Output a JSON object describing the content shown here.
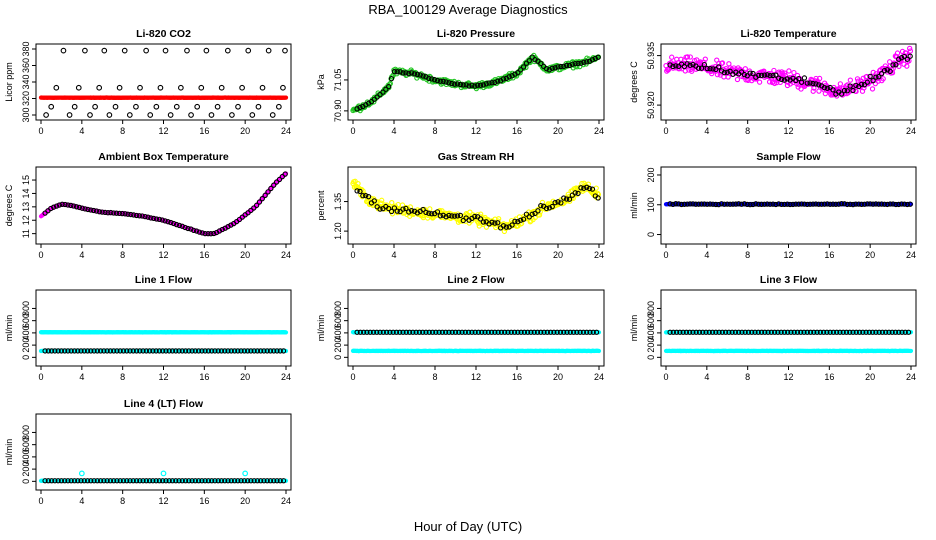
{
  "figure": {
    "title": "RBA_100129  Average Diagnostics",
    "xlabel": "Hour of Day (UTC)"
  },
  "chart_data": [
    {
      "type": "scatter",
      "title": "Li-820 CO2",
      "ylabel": "Licor ppm",
      "xlim": [
        0,
        24
      ],
      "ylim": [
        300,
        380
      ],
      "xticks": [
        "0",
        "4",
        "8",
        "12",
        "16",
        "20",
        "24"
      ],
      "yticks": [
        300,
        320,
        340,
        360,
        380
      ],
      "ytick_labels": [
        "300",
        "320",
        "340",
        "360",
        "380"
      ],
      "series": [
        {
          "name": "main",
          "style": "filled",
          "color": "#ff0000",
          "base_value": 321,
          "trend": "flat"
        },
        {
          "name": "average",
          "style": "open",
          "color": "#000000",
          "scatter_points": [
            [
              0.5,
              300
            ],
            [
              1,
              310
            ],
            [
              1.5,
              333
            ],
            [
              2.2,
              378
            ],
            [
              2.8,
              300
            ],
            [
              3.3,
              310
            ],
            [
              3.7,
              333
            ],
            [
              4.3,
              378
            ],
            [
              4.8,
              300
            ],
            [
              5.3,
              310
            ],
            [
              5.7,
              333
            ],
            [
              6.2,
              378
            ],
            [
              6.7,
              300
            ],
            [
              7.3,
              310
            ],
            [
              7.7,
              333
            ],
            [
              8.2,
              378
            ],
            [
              8.7,
              300
            ],
            [
              9.3,
              310
            ],
            [
              9.7,
              333
            ],
            [
              10.3,
              378
            ],
            [
              10.7,
              300
            ],
            [
              11.3,
              310
            ],
            [
              11.7,
              333
            ],
            [
              12.2,
              378
            ],
            [
              12.7,
              300
            ],
            [
              13.3,
              310
            ],
            [
              13.7,
              333
            ],
            [
              14.3,
              378
            ],
            [
              14.7,
              300
            ],
            [
              15.3,
              310
            ],
            [
              15.7,
              333
            ],
            [
              16.2,
              378
            ],
            [
              16.7,
              300
            ],
            [
              17.3,
              310
            ],
            [
              17.7,
              333
            ],
            [
              18.3,
              378
            ],
            [
              18.7,
              300
            ],
            [
              19.3,
              310
            ],
            [
              19.7,
              333
            ],
            [
              20.3,
              378
            ],
            [
              20.7,
              300
            ],
            [
              21.3,
              310
            ],
            [
              21.7,
              333
            ],
            [
              22.3,
              378
            ],
            [
              22.7,
              300
            ],
            [
              23.3,
              310
            ],
            [
              23.7,
              333
            ],
            [
              23.9,
              378
            ]
          ]
        }
      ]
    },
    {
      "type": "scatter",
      "title": "Li-820 Pressure",
      "ylabel": "kPa",
      "xlim": [
        0,
        24
      ],
      "ylim": [
        70.88,
        71.2
      ],
      "xticks": [
        "0",
        "4",
        "8",
        "12",
        "16",
        "20",
        "24"
      ],
      "yticks": [
        70.9,
        71.05
      ],
      "ytick_labels": [
        "70.90",
        "71.05"
      ],
      "series": [
        {
          "name": "main",
          "style": "open",
          "color": "#22c522",
          "keypoints": [
            [
              0,
              70.9
            ],
            [
              2,
              70.95
            ],
            [
              3.5,
              71.02
            ],
            [
              4,
              71.09
            ],
            [
              6,
              71.08
            ],
            [
              8,
              71.05
            ],
            [
              10,
              71.03
            ],
            [
              12,
              71.02
            ],
            [
              14,
              71.04
            ],
            [
              16,
              71.08
            ],
            [
              17.5,
              71.16
            ],
            [
              19,
              71.1
            ],
            [
              21,
              71.12
            ],
            [
              23,
              71.14
            ],
            [
              24,
              71.16
            ]
          ],
          "spread": 0.02
        },
        {
          "name": "average",
          "style": "open",
          "color": "#000000",
          "follows": "main",
          "spread": 0.005
        }
      ]
    },
    {
      "type": "scatter",
      "title": "Li-820 Temperature",
      "ylabel": "degrees C",
      "xlim": [
        0,
        24
      ],
      "ylim": [
        50.917,
        50.937
      ],
      "xticks": [
        "0",
        "4",
        "8",
        "12",
        "16",
        "20",
        "24"
      ],
      "yticks": [
        50.92,
        50.935
      ],
      "ytick_labels": [
        "50.920",
        "50.935"
      ],
      "series": [
        {
          "name": "main",
          "style": "open",
          "color": "#ff00ff",
          "keypoints": [
            [
              0,
              50.932
            ],
            [
              3,
              50.932
            ],
            [
              6,
              50.93
            ],
            [
              9,
              50.929
            ],
            [
              12,
              50.928
            ],
            [
              15,
              50.926
            ],
            [
              17,
              50.924
            ],
            [
              19,
              50.926
            ],
            [
              21,
              50.929
            ],
            [
              23,
              50.934
            ],
            [
              24,
              50.935
            ]
          ],
          "spread": 0.0035
        },
        {
          "name": "average",
          "style": "open",
          "color": "#000000",
          "follows": "main",
          "spread": 0.0015
        }
      ]
    },
    {
      "type": "scatter",
      "title": "Ambient Box Temperature",
      "ylabel": "degrees C",
      "xlim": [
        0,
        24
      ],
      "ylim": [
        10.6,
        15.6
      ],
      "xticks": [
        "0",
        "4",
        "8",
        "12",
        "16",
        "20",
        "24"
      ],
      "yticks": [
        11,
        12,
        13,
        14,
        15
      ],
      "ytick_labels": [
        "11",
        "12",
        "13",
        "14",
        "15"
      ],
      "series": [
        {
          "name": "main",
          "style": "filled",
          "color": "#ff00ff",
          "keypoints": [
            [
              0,
              12.3
            ],
            [
              1,
              12.9
            ],
            [
              2,
              13.2
            ],
            [
              3,
              13.1
            ],
            [
              4,
              12.9
            ],
            [
              6,
              12.6
            ],
            [
              8,
              12.5
            ],
            [
              10,
              12.3
            ],
            [
              12,
              12.0
            ],
            [
              14,
              11.5
            ],
            [
              16,
              11.0
            ],
            [
              17,
              11.0
            ],
            [
              19,
              11.8
            ],
            [
              21,
              13.0
            ],
            [
              23,
              14.8
            ],
            [
              24,
              15.5
            ]
          ],
          "spread": 0.05
        },
        {
          "name": "average",
          "style": "open",
          "color": "#000000",
          "follows": "main",
          "spread": 0.02
        }
      ]
    },
    {
      "type": "scatter",
      "title": "Gas Stream RH",
      "ylabel": "percent",
      "xlim": [
        0,
        24
      ],
      "ylim": [
        1.16,
        1.5
      ],
      "xticks": [
        "0",
        "4",
        "8",
        "12",
        "16",
        "20",
        "24"
      ],
      "yticks": [
        1.2,
        1.35
      ],
      "ytick_labels": [
        "1.20",
        "1.35"
      ],
      "series": [
        {
          "name": "main",
          "style": "open",
          "color": "#ffff00",
          "keypoints": [
            [
              0,
              1.45
            ],
            [
              1,
              1.38
            ],
            [
              3,
              1.32
            ],
            [
              6,
              1.3
            ],
            [
              9,
              1.28
            ],
            [
              12,
              1.26
            ],
            [
              15,
              1.22
            ],
            [
              17,
              1.27
            ],
            [
              19,
              1.33
            ],
            [
              21,
              1.36
            ],
            [
              22.5,
              1.43
            ],
            [
              24,
              1.38
            ]
          ],
          "spread": 0.04
        },
        {
          "name": "average",
          "style": "open",
          "color": "#000000",
          "follows": "main",
          "spread": 0.025
        }
      ]
    },
    {
      "type": "scatter",
      "title": "Sample Flow",
      "ylabel": "ml/min",
      "xlim": [
        0,
        24
      ],
      "ylim": [
        -15,
        210
      ],
      "xticks": [
        "0",
        "4",
        "8",
        "12",
        "16",
        "20",
        "24"
      ],
      "yticks": [
        0,
        100,
        200
      ],
      "ytick_labels": [
        "0",
        "100",
        "200"
      ],
      "series": [
        {
          "name": "main",
          "style": "filled",
          "color": "#0000ff",
          "base_value": 102,
          "trend": "flat"
        },
        {
          "name": "average",
          "style": "open",
          "color": "#000000",
          "follows": "main",
          "spread": 2
        }
      ]
    },
    {
      "type": "scatter",
      "title": "Line 1 Flow",
      "ylabel": "ml/min",
      "xlim": [
        0,
        24
      ],
      "ylim": [
        -60,
        1020
      ],
      "xticks": [
        "0",
        "4",
        "8",
        "12",
        "16",
        "20",
        "24"
      ],
      "yticks": [
        0,
        200,
        400,
        600,
        800
      ],
      "ytick_labels": [
        "0",
        "200",
        "400",
        "600",
        "800"
      ],
      "series": [
        {
          "name": "flow_high",
          "style": "filled",
          "color": "#00ffff",
          "base_value": 410,
          "trend": "flat"
        },
        {
          "name": "flow_low",
          "style": "filled",
          "color": "#00ffff",
          "base_value": 105,
          "trend": "flat"
        },
        {
          "name": "average",
          "style": "open",
          "color": "#000000",
          "base_value": 105,
          "trend": "flat"
        }
      ]
    },
    {
      "type": "scatter",
      "title": "Line 2 Flow",
      "ylabel": "ml/min",
      "xlim": [
        0,
        24
      ],
      "ylim": [
        -60,
        1020
      ],
      "xticks": [
        "0",
        "4",
        "8",
        "12",
        "16",
        "20",
        "24"
      ],
      "yticks": [
        0,
        200,
        400,
        600,
        800
      ],
      "ytick_labels": [
        "0",
        "200",
        "400",
        "600",
        "800"
      ],
      "series": [
        {
          "name": "flow_high",
          "style": "filled",
          "color": "#00ffff",
          "base_value": 410,
          "trend": "flat"
        },
        {
          "name": "flow_low",
          "style": "filled",
          "color": "#00ffff",
          "base_value": 105,
          "trend": "flat"
        },
        {
          "name": "average",
          "style": "open",
          "color": "#000000",
          "base_value": 410,
          "trend": "flat"
        }
      ]
    },
    {
      "type": "scatter",
      "title": "Line 3 Flow",
      "ylabel": "ml/min",
      "xlim": [
        0,
        24
      ],
      "ylim": [
        -60,
        1020
      ],
      "xticks": [
        "0",
        "4",
        "8",
        "12",
        "16",
        "20",
        "24"
      ],
      "yticks": [
        0,
        200,
        400,
        600,
        800
      ],
      "ytick_labels": [
        "0",
        "200",
        "400",
        "600",
        "800"
      ],
      "series": [
        {
          "name": "flow_high",
          "style": "filled",
          "color": "#00ffff",
          "base_value": 410,
          "trend": "flat"
        },
        {
          "name": "flow_low",
          "style": "filled",
          "color": "#00ffff",
          "base_value": 105,
          "trend": "flat"
        },
        {
          "name": "average",
          "style": "open",
          "color": "#000000",
          "base_value": 410,
          "trend": "flat"
        }
      ]
    },
    {
      "type": "scatter",
      "title": "Line 4 (LT) Flow",
      "ylabel": "ml/min",
      "xlim": [
        0,
        24
      ],
      "ylim": [
        -60,
        1020
      ],
      "xticks": [
        "0",
        "4",
        "8",
        "12",
        "16",
        "20",
        "24"
      ],
      "yticks": [
        0,
        200,
        400,
        600,
        800
      ],
      "ytick_labels": [
        "0",
        "200",
        "400",
        "600",
        "800"
      ],
      "series": [
        {
          "name": "flow_low",
          "style": "filled",
          "color": "#00ffff",
          "base_value": 10,
          "trend": "flat",
          "outliers": [
            [
              4,
              130
            ],
            [
              12,
              130
            ],
            [
              20,
              130
            ]
          ]
        },
        {
          "name": "average",
          "style": "open",
          "color": "#000000",
          "base_value": 10,
          "trend": "flat"
        }
      ]
    }
  ]
}
